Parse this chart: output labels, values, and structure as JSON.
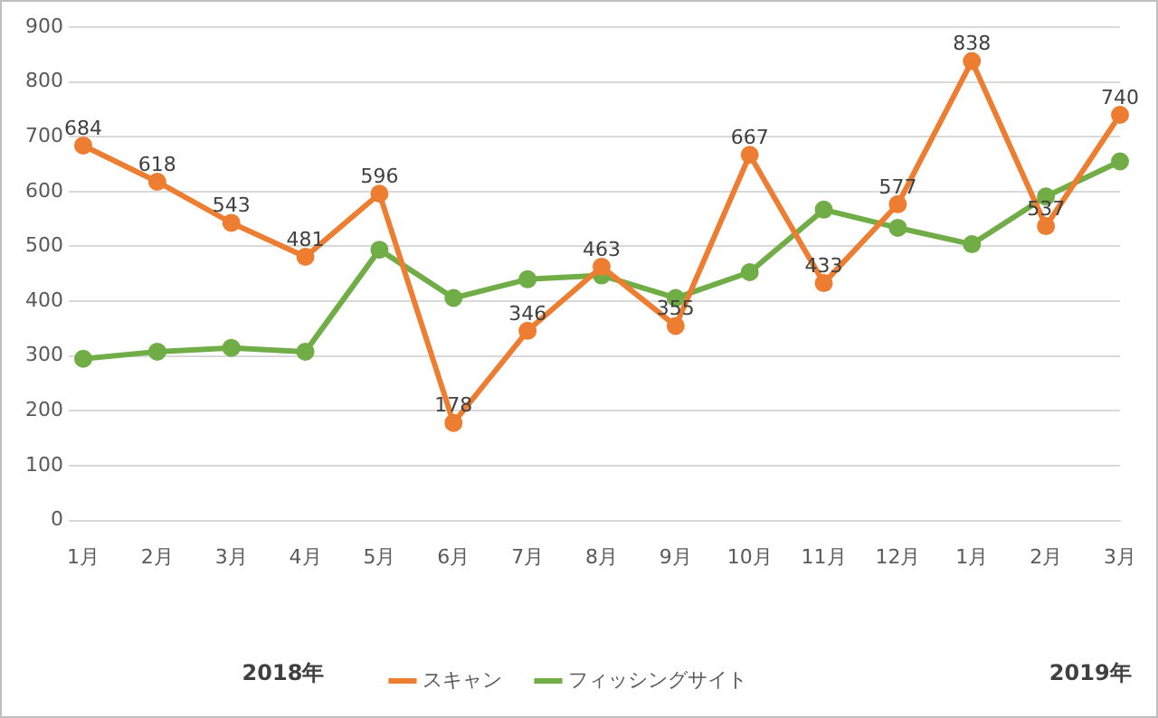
{
  "chart_data": {
    "type": "line",
    "categories": [
      "1月",
      "2月",
      "3月",
      "4月",
      "5月",
      "6月",
      "7月",
      "8月",
      "9月",
      "10月",
      "11月",
      "12月",
      "1月",
      "2月",
      "3月"
    ],
    "series": [
      {
        "name": "スキャン",
        "color": "#ed7d31",
        "values": [
          684,
          618,
          543,
          481,
          596,
          178,
          346,
          463,
          355,
          667,
          433,
          577,
          838,
          537,
          740
        ],
        "value_labels": [
          "684",
          "618",
          "543",
          "481",
          "596",
          "178",
          "346",
          "463",
          "355",
          "667",
          "433",
          "577",
          "838",
          "537",
          "740"
        ]
      },
      {
        "name": "フィッシングサイト",
        "color": "#70ad47",
        "values": [
          295,
          308,
          315,
          308,
          494,
          406,
          440,
          447,
          406,
          453,
          567,
          534,
          504,
          591,
          655
        ]
      }
    ],
    "ylim": [
      0,
      900
    ],
    "yticks": [
      0,
      100,
      200,
      300,
      400,
      500,
      600,
      700,
      800,
      900
    ],
    "grid": "y",
    "legend": "bottom",
    "marker": "circle",
    "line_style": "solid",
    "annotations": [
      "2018年",
      "2019年"
    ]
  }
}
